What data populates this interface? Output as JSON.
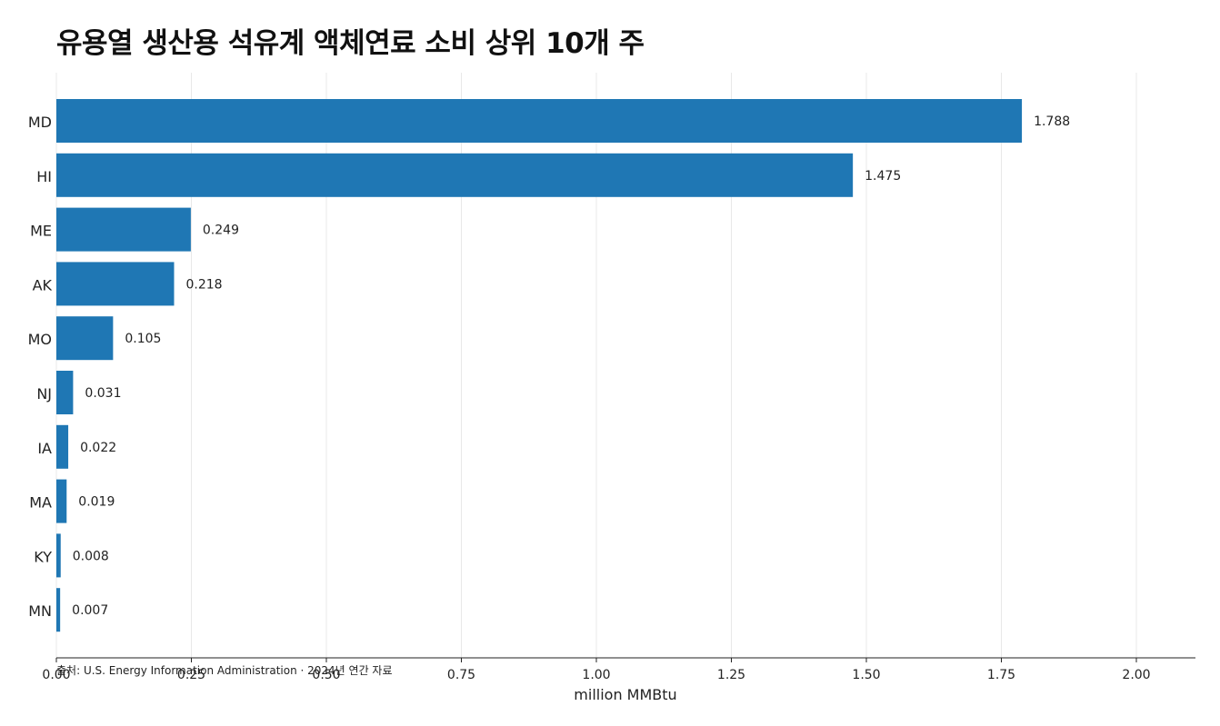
{
  "chart_data": {
    "type": "bar",
    "orientation": "horizontal",
    "title": "유용열 생산용 석유계 액체연료 소비 상위 10개 주",
    "xlabel": "million MMBtu",
    "ylabel": "",
    "xlim": [
      0,
      2.11
    ],
    "xticks": [
      "0.00",
      "0.25",
      "0.50",
      "0.75",
      "1.00",
      "1.25",
      "1.50",
      "1.75",
      "2.00"
    ],
    "categories": [
      "MD",
      "HI",
      "ME",
      "AK",
      "MO",
      "NJ",
      "IA",
      "MA",
      "KY",
      "MN"
    ],
    "values": [
      1.788,
      1.475,
      0.249,
      0.218,
      0.105,
      0.031,
      0.022,
      0.019,
      0.008,
      0.007
    ],
    "value_labels": [
      "1.788",
      "1.475",
      "0.249",
      "0.218",
      "0.105",
      "0.031",
      "0.022",
      "0.019",
      "0.008",
      "0.007"
    ],
    "bar_color": "#1f77b4",
    "grid": "vertical",
    "legend": "none",
    "source": "출처: U.S. Energy Information Administration · 2024년 연간 자료"
  }
}
